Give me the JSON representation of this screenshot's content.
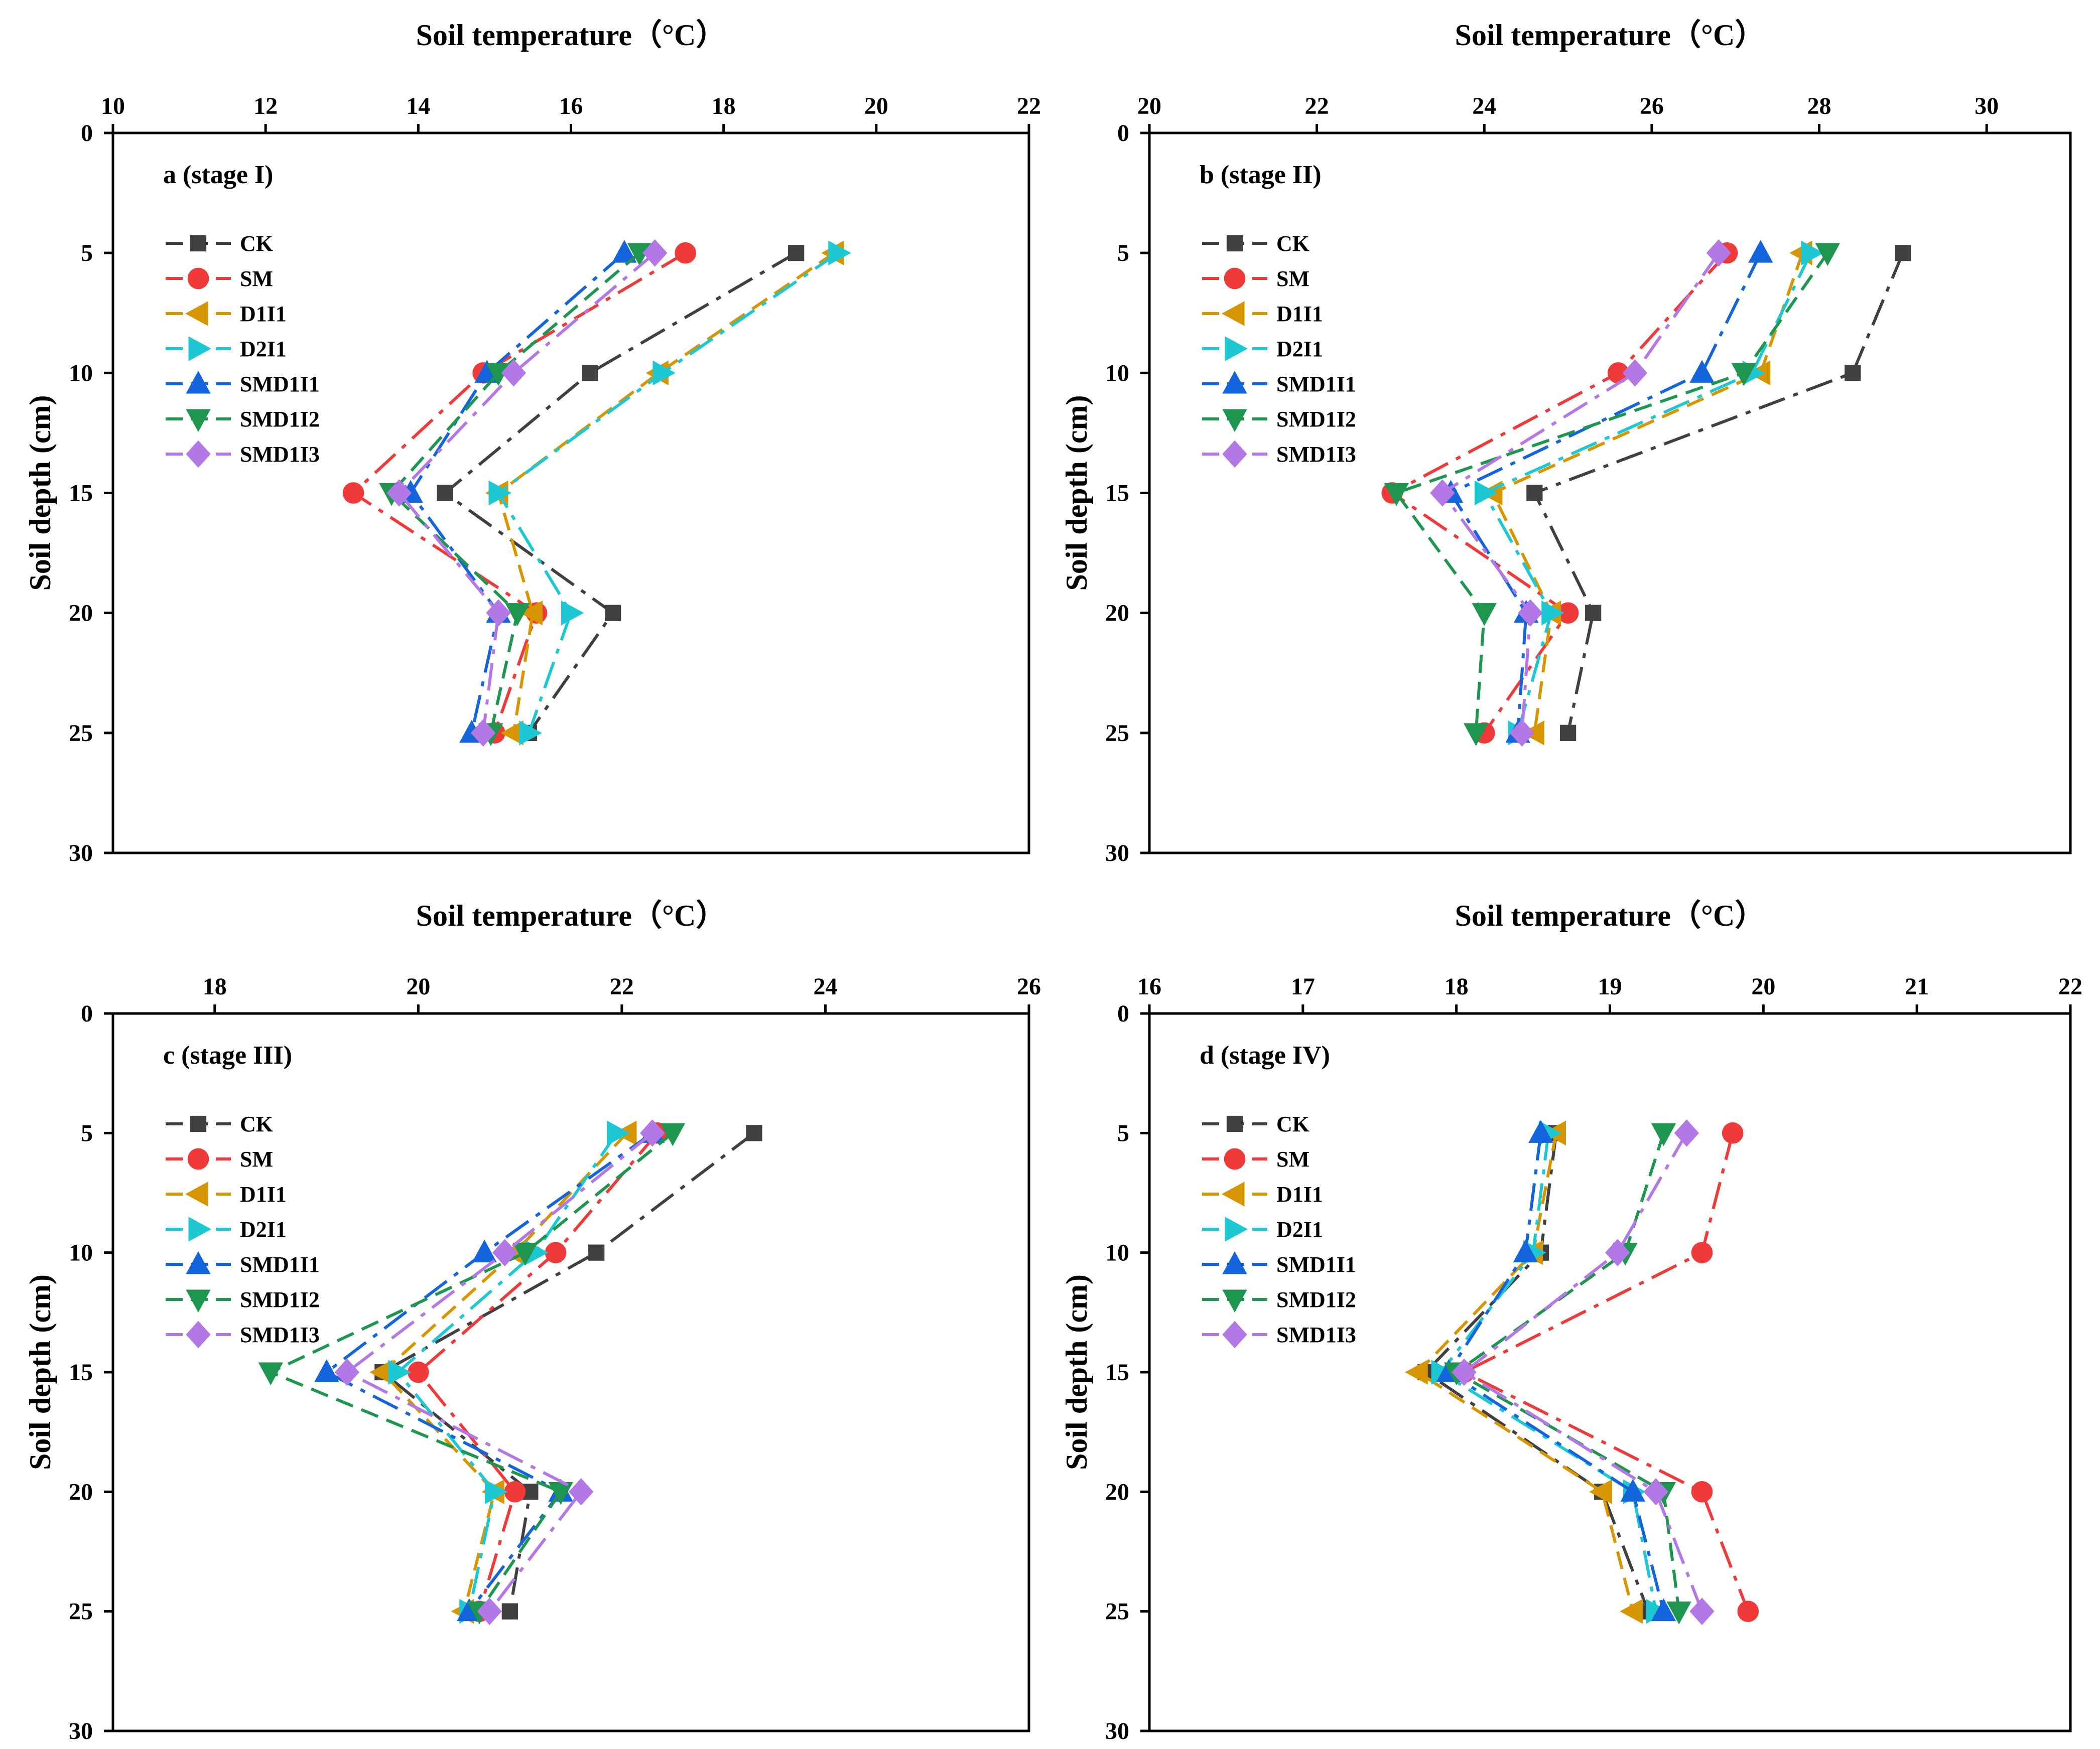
{
  "chart_data": [
    {
      "type": "line",
      "title": "a (stage I)",
      "xlabel": "Soil temperature（°C）",
      "ylabel": "Soil depth (cm)",
      "xlim": [
        10,
        22
      ],
      "ylim": [
        0,
        30
      ],
      "xticks": [
        "10",
        "12",
        "14",
        "16",
        "18",
        "20",
        "22"
      ],
      "yticks": [
        "0",
        "5",
        "10",
        "15",
        "20",
        "25",
        "30"
      ],
      "depths": [
        5,
        10,
        15,
        20,
        25
      ],
      "legend_placement": "upper-left",
      "series": [
        {
          "name": "CK",
          "color": "#404040",
          "marker": "square",
          "values": [
            18.95,
            16.25,
            14.35,
            16.55,
            15.45
          ]
        },
        {
          "name": "SM",
          "color": "#f03a3a",
          "marker": "circle",
          "values": [
            17.5,
            14.85,
            13.15,
            15.55,
            15.0
          ]
        },
        {
          "name": "D1I1",
          "color": "#d79600",
          "marker": "triangle-left",
          "values": [
            19.45,
            17.15,
            15.05,
            15.5,
            15.25
          ]
        },
        {
          "name": "D2I1",
          "color": "#1ec8d2",
          "marker": "triangle-right",
          "values": [
            19.5,
            17.2,
            15.05,
            16.0,
            15.45
          ]
        },
        {
          "name": "SMD1I1",
          "color": "#1464dc",
          "marker": "triangle-up",
          "values": [
            16.7,
            14.9,
            13.9,
            15.05,
            14.7
          ]
        },
        {
          "name": "SMD1I2",
          "color": "#1e9650",
          "marker": "triangle-down",
          "values": [
            16.9,
            15.05,
            13.65,
            15.3,
            14.95
          ]
        },
        {
          "name": "SMD1I3",
          "color": "#b478e6",
          "marker": "diamond",
          "values": [
            17.1,
            15.25,
            13.75,
            15.05,
            14.85
          ]
        }
      ]
    },
    {
      "type": "line",
      "title": "b (stage II)",
      "xlabel": "Soil temperature（°C）",
      "ylabel": "Soil depth (cm)",
      "xlim": [
        20,
        31
      ],
      "ylim": [
        0,
        30
      ],
      "xticks": [
        "20",
        "22",
        "24",
        "26",
        "28",
        "30"
      ],
      "yticks": [
        "0",
        "5",
        "10",
        "15",
        "20",
        "25",
        "30"
      ],
      "depths": [
        5,
        10,
        15,
        20,
        25
      ],
      "legend_placement": "upper-left",
      "series": [
        {
          "name": "CK",
          "color": "#404040",
          "marker": "square",
          "values": [
            29.0,
            28.4,
            24.6,
            25.3,
            25.0
          ]
        },
        {
          "name": "SM",
          "color": "#f03a3a",
          "marker": "circle",
          "values": [
            26.9,
            25.6,
            22.9,
            25.0,
            24.0
          ]
        },
        {
          "name": "D1I1",
          "color": "#d79600",
          "marker": "triangle-left",
          "values": [
            27.8,
            27.3,
            24.1,
            24.8,
            24.6
          ]
        },
        {
          "name": "D2I1",
          "color": "#1ec8d2",
          "marker": "triangle-right",
          "values": [
            27.9,
            27.2,
            24.0,
            24.8,
            24.4
          ]
        },
        {
          "name": "SMD1I1",
          "color": "#1464dc",
          "marker": "triangle-up",
          "values": [
            27.3,
            26.6,
            23.6,
            24.5,
            24.4
          ]
        },
        {
          "name": "SMD1I2",
          "color": "#1e9650",
          "marker": "triangle-down",
          "values": [
            28.1,
            27.1,
            22.95,
            24.0,
            23.9
          ]
        },
        {
          "name": "SMD1I3",
          "color": "#b478e6",
          "marker": "diamond",
          "values": [
            26.8,
            25.8,
            23.5,
            24.55,
            24.45
          ]
        }
      ]
    },
    {
      "type": "line",
      "title": "c (stage III)",
      "xlabel": "Soil temperature（°C）",
      "ylabel": "Soil depth (cm)",
      "xlim": [
        17,
        26
      ],
      "ylim": [
        0,
        30
      ],
      "xticks": [
        "18",
        "20",
        "22",
        "24",
        "26"
      ],
      "yticks": [
        "0",
        "5",
        "10",
        "15",
        "20",
        "25",
        "30"
      ],
      "depths": [
        5,
        10,
        15,
        20,
        25
      ],
      "legend_placement": "upper-left",
      "series": [
        {
          "name": "CK",
          "color": "#404040",
          "marker": "square",
          "values": [
            23.3,
            21.75,
            19.65,
            21.1,
            20.9
          ]
        },
        {
          "name": "SM",
          "color": "#f03a3a",
          "marker": "circle",
          "values": [
            22.35,
            21.35,
            20.0,
            20.95,
            20.6
          ]
        },
        {
          "name": "D1I1",
          "color": "#d79600",
          "marker": "triangle-left",
          "values": [
            22.05,
            20.95,
            19.65,
            20.75,
            20.45
          ]
        },
        {
          "name": "D2I1",
          "color": "#1ec8d2",
          "marker": "triangle-right",
          "values": [
            21.95,
            21.15,
            19.8,
            20.75,
            20.5
          ]
        },
        {
          "name": "SMD1I1",
          "color": "#1464dc",
          "marker": "triangle-up",
          "values": [
            22.3,
            20.65,
            19.1,
            21.4,
            20.5
          ]
        },
        {
          "name": "SMD1I2",
          "color": "#1e9650",
          "marker": "triangle-down",
          "values": [
            22.5,
            21.05,
            18.55,
            21.4,
            20.6
          ]
        },
        {
          "name": "SMD1I3",
          "color": "#b478e6",
          "marker": "diamond",
          "values": [
            22.3,
            20.85,
            19.3,
            21.6,
            20.7
          ]
        }
      ]
    },
    {
      "type": "line",
      "title": "d (stage IV)",
      "xlabel": "Soil temperature（°C）",
      "ylabel": "Soil depth (cm)",
      "xlim": [
        16,
        22
      ],
      "ylim": [
        0,
        30
      ],
      "xticks": [
        "16",
        "17",
        "18",
        "19",
        "20",
        "21",
        "22"
      ],
      "yticks": [
        "0",
        "5",
        "10",
        "15",
        "20",
        "25",
        "30"
      ],
      "depths": [
        5,
        10,
        15,
        20,
        25
      ],
      "legend_placement": "upper-left",
      "series": [
        {
          "name": "CK",
          "color": "#404040",
          "marker": "square",
          "values": [
            18.65,
            18.55,
            17.8,
            18.95,
            19.25
          ]
        },
        {
          "name": "SM",
          "color": "#f03a3a",
          "marker": "circle",
          "values": [
            19.8,
            19.6,
            18.05,
            19.6,
            19.9
          ]
        },
        {
          "name": "D1I1",
          "color": "#d79600",
          "marker": "triangle-left",
          "values": [
            18.65,
            18.5,
            17.75,
            18.95,
            19.15
          ]
        },
        {
          "name": "D2I1",
          "color": "#1ec8d2",
          "marker": "triangle-right",
          "values": [
            18.6,
            18.5,
            17.9,
            19.15,
            19.3
          ]
        },
        {
          "name": "SMD1I1",
          "color": "#1464dc",
          "marker": "triangle-up",
          "values": [
            18.55,
            18.45,
            17.95,
            19.15,
            19.35
          ]
        },
        {
          "name": "SMD1I2",
          "color": "#1e9650",
          "marker": "triangle-down",
          "values": [
            19.35,
            19.1,
            18.0,
            19.35,
            19.45
          ]
        },
        {
          "name": "SMD1I3",
          "color": "#b478e6",
          "marker": "diamond",
          "values": [
            19.5,
            19.05,
            18.05,
            19.3,
            19.6
          ]
        }
      ]
    }
  ]
}
